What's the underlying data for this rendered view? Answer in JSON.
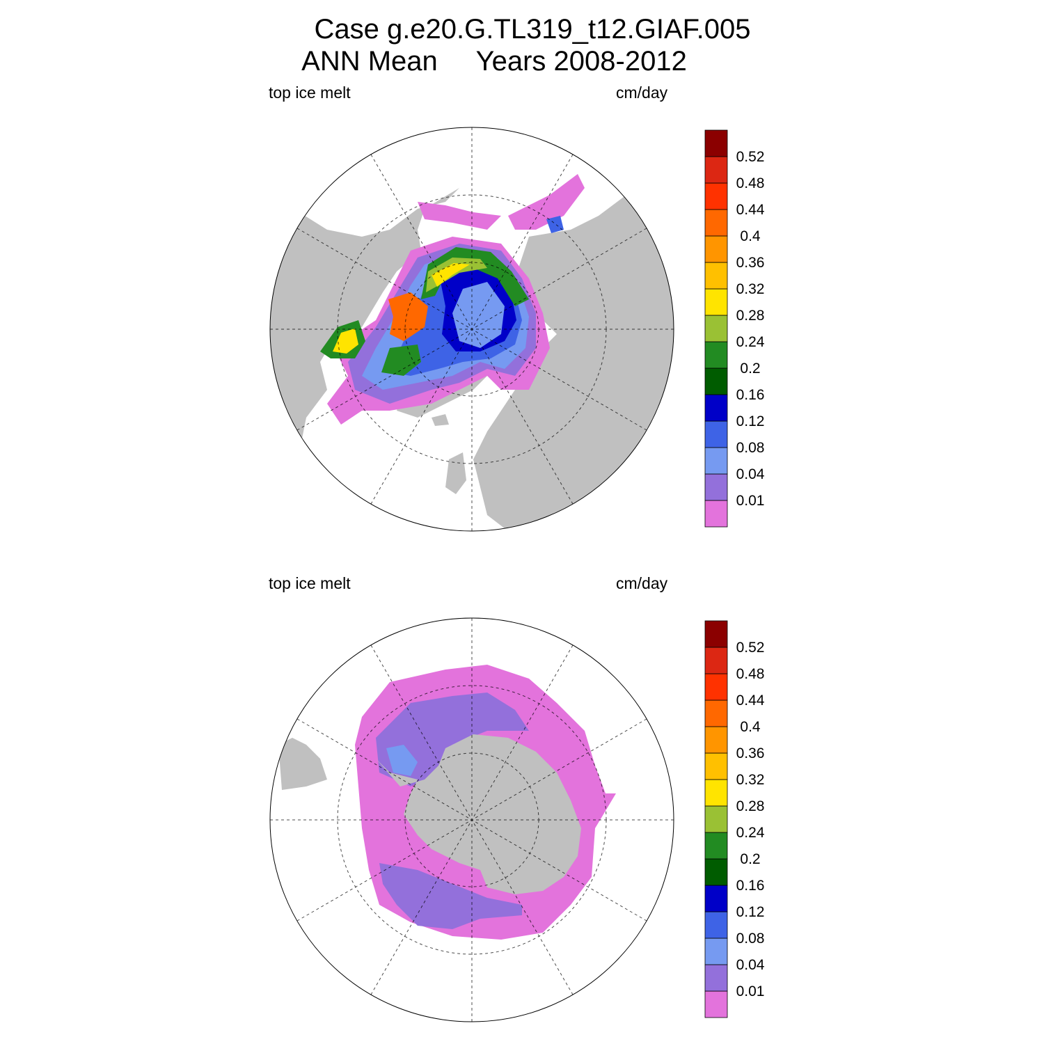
{
  "title": {
    "line1": "Case g.e20.G.TL319_t12.GIAF.005",
    "line2": "ANN Mean     Years 2008-2012"
  },
  "panels": [
    {
      "id": "north",
      "variable": "top ice melt",
      "units": "cm/day"
    },
    {
      "id": "south",
      "variable": "top ice melt",
      "units": "cm/day"
    }
  ],
  "colorbar": {
    "levels": [
      "0.01",
      "0.04",
      "0.08",
      "0.12",
      "0.16",
      "0.2",
      "0.24",
      "0.28",
      "0.32",
      "0.36",
      "0.4",
      "0.44",
      "0.48",
      "0.52"
    ],
    "colors": [
      "#e373dc",
      "#9370db",
      "#769af1",
      "#3e63e6",
      "#0000c8",
      "#005c00",
      "#228b22",
      "#9ac134",
      "#ffe400",
      "#ffc000",
      "#ff9500",
      "#ff6800",
      "#ff3200",
      "#dc2713",
      "#8b0000"
    ]
  },
  "map_colors": {
    "land": "#c0c0c0",
    "ocean": "#ffffff",
    "grid": "#000000"
  }
}
